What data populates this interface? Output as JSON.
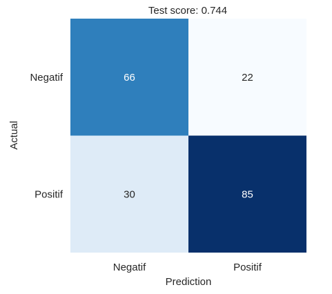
{
  "chart_data": {
    "type": "heatmap",
    "title": "Test score: 0.744",
    "xlabel": "Prediction",
    "ylabel": "Actual",
    "x_categories": [
      "Negatif",
      "Positif"
    ],
    "y_categories": [
      "Negatif",
      "Positif"
    ],
    "values": [
      [
        66,
        22
      ],
      [
        30,
        85
      ]
    ],
    "colormap": "Blues",
    "value_range": [
      22,
      85
    ],
    "colorbar": false,
    "grid": false,
    "annotation_colors": {
      "light": "#ffffff",
      "dark": "#262626"
    }
  }
}
